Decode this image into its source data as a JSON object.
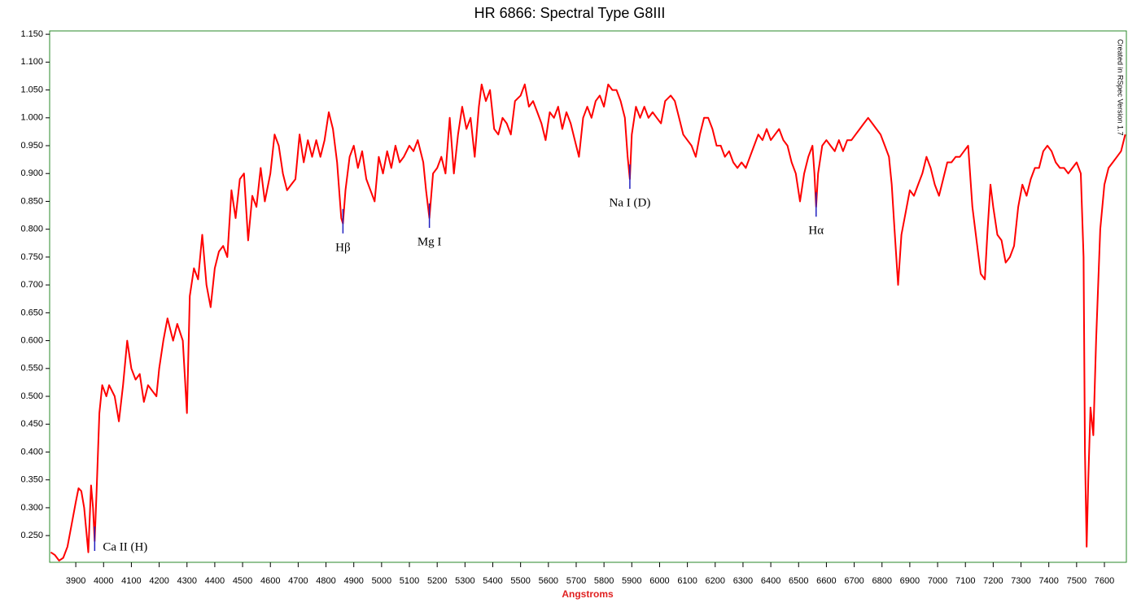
{
  "chart_data": {
    "type": "line",
    "title": "HR 6866: Spectral Type G8III",
    "x_label": "Angstroms",
    "credit": "Created in RSpec Version 1.7",
    "color": "#ff0000",
    "annotation_color": "#2020c0",
    "xlim": [
      3806,
      7679
    ],
    "ylim": [
      0.202,
      1.156
    ],
    "xticks": [
      3900,
      4000,
      4100,
      4200,
      4300,
      4400,
      4500,
      4600,
      4700,
      4800,
      4900,
      5000,
      5100,
      5200,
      5300,
      5400,
      5500,
      5600,
      5700,
      5800,
      5900,
      6000,
      6100,
      6200,
      6300,
      6400,
      6500,
      6600,
      6700,
      6800,
      6900,
      7000,
      7100,
      7200,
      7300,
      7400,
      7500,
      7600
    ],
    "yticks": [
      {
        "value": 0.25,
        "label": "0.250"
      },
      {
        "value": 0.3,
        "label": "0.300"
      },
      {
        "value": 0.35,
        "label": "0.350"
      },
      {
        "value": 0.4,
        "label": "0.400"
      },
      {
        "value": 0.45,
        "label": "0.450"
      },
      {
        "value": 0.5,
        "label": "0.500"
      },
      {
        "value": 0.55,
        "label": "0.550"
      },
      {
        "value": 0.6,
        "label": "0.600"
      },
      {
        "value": 0.65,
        "label": "0.650"
      },
      {
        "value": 0.7,
        "label": "0.700"
      },
      {
        "value": 0.75,
        "label": "0.750"
      },
      {
        "value": 0.8,
        "label": "0.800"
      },
      {
        "value": 0.85,
        "label": "0.850"
      },
      {
        "value": 0.9,
        "label": "0.900"
      },
      {
        "value": 0.95,
        "label": "0.950"
      },
      {
        "value": 1.0,
        "label": "1.000"
      },
      {
        "value": 1.05,
        "label": "1.050"
      },
      {
        "value": 1.1,
        "label": "1.100"
      },
      {
        "value": 1.15,
        "label": "1.150"
      }
    ],
    "annotations": [
      {
        "text": "Ca II (H)",
        "x": 3968
      },
      {
        "text": "Hβ",
        "x": 4861
      },
      {
        "text": "Mg I",
        "x": 5172
      },
      {
        "text": "Na I (D)",
        "x": 5893
      },
      {
        "text": "Hα",
        "x": 6563
      }
    ],
    "x": [
      3810,
      3825,
      3840,
      3855,
      3870,
      3885,
      3900,
      3910,
      3920,
      3930,
      3945,
      3955,
      3962,
      3968,
      3975,
      3985,
      3995,
      4010,
      4020,
      4040,
      4055,
      4070,
      4085,
      4100,
      4115,
      4130,
      4145,
      4160,
      4175,
      4190,
      4200,
      4215,
      4230,
      4250,
      4265,
      4285,
      4300,
      4310,
      4325,
      4340,
      4355,
      4370,
      4385,
      4400,
      4415,
      4430,
      4445,
      4460,
      4475,
      4490,
      4505,
      4520,
      4535,
      4550,
      4565,
      4580,
      4600,
      4615,
      4630,
      4645,
      4660,
      4675,
      4690,
      4705,
      4720,
      4735,
      4750,
      4765,
      4780,
      4795,
      4810,
      4825,
      4840,
      4855,
      4861,
      4870,
      4885,
      4900,
      4915,
      4930,
      4945,
      4960,
      4975,
      4990,
      5005,
      5020,
      5035,
      5050,
      5065,
      5080,
      5100,
      5115,
      5130,
      5150,
      5160,
      5172,
      5185,
      5200,
      5215,
      5230,
      5245,
      5260,
      5275,
      5290,
      5305,
      5320,
      5335,
      5350,
      5360,
      5375,
      5390,
      5405,
      5420,
      5435,
      5450,
      5465,
      5480,
      5500,
      5515,
      5530,
      5545,
      5560,
      5575,
      5590,
      5605,
      5620,
      5635,
      5650,
      5665,
      5680,
      5695,
      5710,
      5725,
      5740,
      5755,
      5770,
      5785,
      5800,
      5815,
      5830,
      5845,
      5860,
      5875,
      5885,
      5893,
      5900,
      5915,
      5930,
      5945,
      5960,
      5975,
      5990,
      6005,
      6020,
      6040,
      6055,
      6070,
      6085,
      6100,
      6115,
      6130,
      6145,
      6160,
      6175,
      6190,
      6205,
      6220,
      6235,
      6250,
      6265,
      6280,
      6295,
      6310,
      6325,
      6340,
      6355,
      6370,
      6385,
      6400,
      6415,
      6430,
      6445,
      6460,
      6475,
      6490,
      6505,
      6520,
      6535,
      6550,
      6557,
      6563,
      6570,
      6585,
      6600,
      6615,
      6630,
      6645,
      6660,
      6675,
      6690,
      6705,
      6720,
      6735,
      6750,
      6765,
      6780,
      6795,
      6810,
      6825,
      6835,
      6845,
      6858,
      6870,
      6885,
      6900,
      6915,
      6930,
      6945,
      6960,
      6975,
      6990,
      7005,
      7020,
      7035,
      7050,
      7065,
      7080,
      7095,
      7110,
      7125,
      7140,
      7155,
      7170,
      7180,
      7190,
      7200,
      7215,
      7230,
      7245,
      7260,
      7275,
      7290,
      7305,
      7320,
      7335,
      7350,
      7365,
      7380,
      7395,
      7410,
      7425,
      7440,
      7455,
      7470,
      7485,
      7500,
      7515,
      7525,
      7530,
      7536,
      7542,
      7550,
      7560,
      7570,
      7585,
      7600,
      7615,
      7630,
      7645,
      7660,
      7675
    ],
    "values": [
      0.22,
      0.215,
      0.205,
      0.21,
      0.23,
      0.27,
      0.31,
      0.335,
      0.33,
      0.3,
      0.22,
      0.34,
      0.3,
      0.24,
      0.33,
      0.47,
      0.52,
      0.5,
      0.52,
      0.5,
      0.455,
      0.52,
      0.6,
      0.55,
      0.53,
      0.54,
      0.49,
      0.52,
      0.51,
      0.5,
      0.55,
      0.6,
      0.64,
      0.6,
      0.63,
      0.6,
      0.47,
      0.68,
      0.73,
      0.71,
      0.79,
      0.7,
      0.66,
      0.73,
      0.76,
      0.77,
      0.75,
      0.87,
      0.82,
      0.89,
      0.9,
      0.78,
      0.86,
      0.84,
      0.91,
      0.85,
      0.9,
      0.97,
      0.95,
      0.9,
      0.87,
      0.88,
      0.89,
      0.97,
      0.92,
      0.96,
      0.93,
      0.96,
      0.93,
      0.96,
      1.01,
      0.98,
      0.92,
      0.82,
      0.81,
      0.87,
      0.93,
      0.95,
      0.91,
      0.94,
      0.89,
      0.87,
      0.85,
      0.93,
      0.9,
      0.94,
      0.91,
      0.95,
      0.92,
      0.93,
      0.95,
      0.94,
      0.96,
      0.92,
      0.87,
      0.82,
      0.9,
      0.91,
      0.93,
      0.9,
      1.0,
      0.9,
      0.97,
      1.02,
      0.98,
      1.0,
      0.93,
      1.02,
      1.06,
      1.03,
      1.05,
      0.98,
      0.97,
      1.0,
      0.99,
      0.97,
      1.03,
      1.04,
      1.06,
      1.02,
      1.03,
      1.01,
      0.99,
      0.96,
      1.01,
      1.0,
      1.02,
      0.98,
      1.01,
      0.99,
      0.96,
      0.93,
      1.0,
      1.02,
      1.0,
      1.03,
      1.04,
      1.02,
      1.06,
      1.05,
      1.05,
      1.03,
      1.0,
      0.93,
      0.89,
      0.97,
      1.02,
      1.0,
      1.02,
      1.0,
      1.01,
      1.0,
      0.99,
      1.03,
      1.04,
      1.03,
      1.0,
      0.97,
      0.96,
      0.95,
      0.93,
      0.97,
      1.0,
      1.0,
      0.98,
      0.95,
      0.95,
      0.93,
      0.94,
      0.92,
      0.91,
      0.92,
      0.91,
      0.93,
      0.95,
      0.97,
      0.96,
      0.98,
      0.96,
      0.97,
      0.98,
      0.96,
      0.95,
      0.92,
      0.9,
      0.85,
      0.9,
      0.93,
      0.95,
      0.9,
      0.84,
      0.9,
      0.95,
      0.96,
      0.95,
      0.94,
      0.96,
      0.94,
      0.96,
      0.96,
      0.97,
      0.98,
      0.99,
      1.0,
      0.99,
      0.98,
      0.97,
      0.95,
      0.93,
      0.88,
      0.8,
      0.7,
      0.79,
      0.83,
      0.87,
      0.86,
      0.88,
      0.9,
      0.93,
      0.91,
      0.88,
      0.86,
      0.89,
      0.92,
      0.92,
      0.93,
      0.93,
      0.94,
      0.95,
      0.84,
      0.78,
      0.72,
      0.71,
      0.8,
      0.88,
      0.84,
      0.79,
      0.78,
      0.74,
      0.75,
      0.77,
      0.84,
      0.88,
      0.86,
      0.89,
      0.91,
      0.91,
      0.94,
      0.95,
      0.94,
      0.92,
      0.91,
      0.91,
      0.9,
      0.91,
      0.92,
      0.9,
      0.75,
      0.4,
      0.23,
      0.35,
      0.48,
      0.43,
      0.6,
      0.8,
      0.88,
      0.91,
      0.92,
      0.93,
      0.94,
      0.97
    ]
  }
}
